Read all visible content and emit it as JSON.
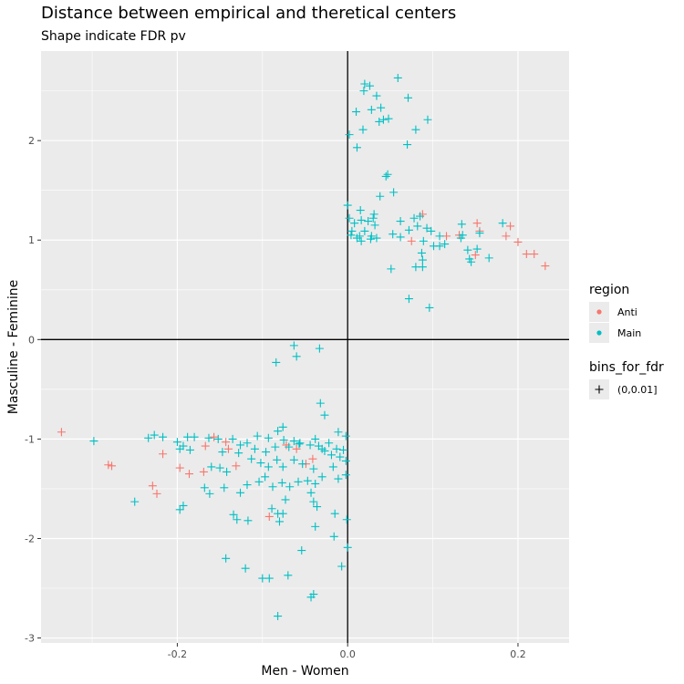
{
  "chart_data": {
    "type": "scatter",
    "title": "Distance between empirical and theretical centers",
    "subtitle": "Shape indicate FDR pv",
    "xlabel": "Men - Women",
    "ylabel": "Masculine - Feminine",
    "xlim": [
      -0.36,
      0.26
    ],
    "ylim": [
      -3.05,
      2.9
    ],
    "x_ticks": [
      -0.2,
      0.0,
      0.2
    ],
    "x_tick_labels": [
      "-0.2",
      "0.0",
      "0.2"
    ],
    "y_ticks": [
      2,
      1,
      0,
      -1,
      -2,
      -3
    ],
    "y_tick_labels": [
      "2",
      "1",
      "0",
      "-1",
      "-2",
      "-3"
    ],
    "grid": true,
    "reference_lines": {
      "x": 0,
      "y": 0
    },
    "legend_position": "right",
    "colors": {
      "Anti": "#F8766D",
      "Main": "#00BFC4",
      "panel": "#EBEBEB",
      "grid": "#FFFFFF"
    },
    "legends": [
      {
        "title": "region",
        "entries": [
          {
            "label": "Anti",
            "color": "#F8766D"
          },
          {
            "label": "Main",
            "color": "#00BFC4"
          }
        ]
      },
      {
        "title": "bins_for_fdr",
        "entries": [
          {
            "label": "(0,0.01]",
            "shape": "plus"
          }
        ]
      }
    ],
    "series": [
      {
        "name": "Anti",
        "color": "#F8766D",
        "points": [
          [
            -0.336,
            -0.93
          ],
          [
            -0.281,
            -1.26
          ],
          [
            -0.277,
            -1.27
          ],
          [
            -0.229,
            -1.47
          ],
          [
            -0.224,
            -1.55
          ],
          [
            -0.217,
            -1.15
          ],
          [
            -0.197,
            -1.29
          ],
          [
            -0.186,
            -1.35
          ],
          [
            -0.169,
            -1.33
          ],
          [
            -0.167,
            -1.07
          ],
          [
            -0.157,
            -0.98
          ],
          [
            -0.143,
            -1.03
          ],
          [
            -0.14,
            -1.1
          ],
          [
            -0.131,
            -1.27
          ],
          [
            -0.092,
            -1.78
          ],
          [
            -0.072,
            -1.06
          ],
          [
            -0.06,
            -1.1
          ],
          [
            -0.049,
            -1.25
          ],
          [
            -0.041,
            -1.2
          ],
          [
            0.075,
            0.99
          ],
          [
            0.088,
            1.26
          ],
          [
            0.116,
            1.04
          ],
          [
            0.131,
            1.05
          ],
          [
            0.15,
            0.85
          ],
          [
            0.152,
            1.17
          ],
          [
            0.155,
            1.09
          ],
          [
            0.186,
            1.04
          ],
          [
            0.191,
            1.14
          ],
          [
            0.2,
            0.98
          ],
          [
            0.21,
            0.86
          ],
          [
            0.219,
            0.86
          ],
          [
            0.232,
            0.74
          ]
        ]
      },
      {
        "name": "Main",
        "color": "#00BFC4",
        "points": [
          [
            0.02,
            2.57
          ],
          [
            0.026,
            2.55
          ],
          [
            0.019,
            2.5
          ],
          [
            0.059,
            2.63
          ],
          [
            0.034,
            2.45
          ],
          [
            0.071,
            2.43
          ],
          [
            0.01,
            2.29
          ],
          [
            0.028,
            2.31
          ],
          [
            0.039,
            2.33
          ],
          [
            0.042,
            2.21
          ],
          [
            0.048,
            2.22
          ],
          [
            0.037,
            2.19
          ],
          [
            0.094,
            2.21
          ],
          [
            0.08,
            2.11
          ],
          [
            0.018,
            2.11
          ],
          [
            0.002,
            2.06
          ],
          [
            0.07,
            1.96
          ],
          [
            0.011,
            1.93
          ],
          [
            0.045,
            1.64
          ],
          [
            0.047,
            1.66
          ],
          [
            0.054,
            1.48
          ],
          [
            0.038,
            1.44
          ],
          [
            0.0,
            1.35
          ],
          [
            0.015,
            1.3
          ],
          [
            0.031,
            1.26
          ],
          [
            0.03,
            1.22
          ],
          [
            0.002,
            1.22
          ],
          [
            0.016,
            1.2
          ],
          [
            0.008,
            1.17
          ],
          [
            0.024,
            1.19
          ],
          [
            0.032,
            1.15
          ],
          [
            0.062,
            1.19
          ],
          [
            0.078,
            1.22
          ],
          [
            0.085,
            1.24
          ],
          [
            0.072,
            1.1
          ],
          [
            0.082,
            1.14
          ],
          [
            0.093,
            1.12
          ],
          [
            0.098,
            1.09
          ],
          [
            0.134,
            1.16
          ],
          [
            0.005,
            1.09
          ],
          [
            0.02,
            1.09
          ],
          [
            0.004,
            1.05
          ],
          [
            0.014,
            1.04
          ],
          [
            0.028,
            1.04
          ],
          [
            0.034,
            1.02
          ],
          [
            0.053,
            1.06
          ],
          [
            0.062,
            1.03
          ],
          [
            0.108,
            1.04
          ],
          [
            0.135,
            1.05
          ],
          [
            0.155,
            1.07
          ],
          [
            0.182,
            1.17
          ],
          [
            0.011,
            1.02
          ],
          [
            0.016,
            0.99
          ],
          [
            0.027,
            1.01
          ],
          [
            0.089,
            0.99
          ],
          [
            0.101,
            0.94
          ],
          [
            0.108,
            0.94
          ],
          [
            0.114,
            0.96
          ],
          [
            0.133,
            1.02
          ],
          [
            0.141,
            0.9
          ],
          [
            0.152,
            0.91
          ],
          [
            0.143,
            0.81
          ],
          [
            0.166,
            0.82
          ],
          [
            0.087,
            0.87
          ],
          [
            0.088,
            0.8
          ],
          [
            0.08,
            0.73
          ],
          [
            0.088,
            0.73
          ],
          [
            0.051,
            0.71
          ],
          [
            0.072,
            0.41
          ],
          [
            0.096,
            0.32
          ],
          [
            0.145,
            0.78
          ],
          [
            -0.063,
            -0.06
          ],
          [
            -0.033,
            -0.09
          ],
          [
            -0.06,
            -0.17
          ],
          [
            -0.084,
            -0.23
          ],
          [
            -0.032,
            -0.64
          ],
          [
            -0.027,
            -0.76
          ],
          [
            -0.076,
            -0.88
          ],
          [
            -0.082,
            -0.92
          ],
          [
            -0.011,
            -0.93
          ],
          [
            -0.002,
            -0.97
          ],
          [
            -0.298,
            -1.02
          ],
          [
            -0.234,
            -0.99
          ],
          [
            -0.227,
            -0.96
          ],
          [
            -0.217,
            -0.98
          ],
          [
            -0.2,
            -1.03
          ],
          [
            -0.193,
            -1.07
          ],
          [
            -0.197,
            -1.1
          ],
          [
            -0.185,
            -1.11
          ],
          [
            -0.188,
            -0.98
          ],
          [
            -0.18,
            -0.98
          ],
          [
            -0.163,
            -0.99
          ],
          [
            -0.152,
            -1.0
          ],
          [
            -0.135,
            -1.0
          ],
          [
            -0.118,
            -1.04
          ],
          [
            -0.106,
            -0.97
          ],
          [
            -0.093,
            -0.99
          ],
          [
            -0.075,
            -1.01
          ],
          [
            -0.063,
            -1.02
          ],
          [
            -0.056,
            -1.04
          ],
          [
            -0.038,
            -1.0
          ],
          [
            -0.022,
            -1.04
          ],
          [
            -0.013,
            -1.1
          ],
          [
            -0.019,
            -1.16
          ],
          [
            -0.009,
            -1.18
          ],
          [
            -0.002,
            -1.22
          ],
          [
            -0.005,
            -1.11
          ],
          [
            -0.126,
            -1.06
          ],
          [
            -0.109,
            -1.1
          ],
          [
            -0.096,
            -1.13
          ],
          [
            -0.085,
            -1.08
          ],
          [
            -0.069,
            -1.08
          ],
          [
            -0.057,
            -1.05
          ],
          [
            -0.044,
            -1.06
          ],
          [
            -0.034,
            -1.07
          ],
          [
            -0.03,
            -1.1
          ],
          [
            -0.027,
            -1.12
          ],
          [
            -0.147,
            -1.13
          ],
          [
            -0.16,
            -1.28
          ],
          [
            -0.15,
            -1.29
          ],
          [
            -0.142,
            -1.33
          ],
          [
            -0.128,
            -1.14
          ],
          [
            -0.113,
            -1.2
          ],
          [
            -0.102,
            -1.24
          ],
          [
            -0.093,
            -1.28
          ],
          [
            -0.083,
            -1.21
          ],
          [
            -0.076,
            -1.28
          ],
          [
            -0.063,
            -1.21
          ],
          [
            -0.053,
            -1.25
          ],
          [
            -0.04,
            -1.3
          ],
          [
            -0.03,
            -1.38
          ],
          [
            -0.017,
            -1.28
          ],
          [
            -0.011,
            -1.4
          ],
          [
            -0.002,
            -1.36
          ],
          [
            -0.047,
            -1.42
          ],
          [
            -0.038,
            -1.45
          ],
          [
            -0.168,
            -1.49
          ],
          [
            -0.162,
            -1.55
          ],
          [
            -0.145,
            -1.49
          ],
          [
            -0.126,
            -1.54
          ],
          [
            -0.118,
            -1.46
          ],
          [
            -0.104,
            -1.43
          ],
          [
            -0.097,
            -1.38
          ],
          [
            -0.088,
            -1.48
          ],
          [
            -0.077,
            -1.44
          ],
          [
            -0.068,
            -1.48
          ],
          [
            -0.058,
            -1.43
          ],
          [
            -0.043,
            -1.54
          ],
          [
            -0.04,
            -1.63
          ],
          [
            -0.073,
            -1.61
          ],
          [
            -0.089,
            -1.7
          ],
          [
            -0.082,
            -1.75
          ],
          [
            -0.08,
            -1.83
          ],
          [
            -0.076,
            -1.75
          ],
          [
            -0.036,
            -1.68
          ],
          [
            -0.038,
            -1.88
          ],
          [
            -0.015,
            -1.75
          ],
          [
            -0.001,
            -1.81
          ],
          [
            -0.134,
            -1.76
          ],
          [
            -0.13,
            -1.81
          ],
          [
            -0.117,
            -1.82
          ],
          [
            -0.197,
            -1.71
          ],
          [
            -0.193,
            -1.67
          ],
          [
            -0.25,
            -1.63
          ],
          [
            -0.016,
            -1.98
          ],
          [
            -0.054,
            -2.12
          ],
          [
            -0.143,
            -2.2
          ],
          [
            -0.12,
            -2.3
          ],
          [
            -0.1,
            -2.4
          ],
          [
            -0.092,
            -2.4
          ],
          [
            -0.07,
            -2.37
          ],
          [
            -0.007,
            -2.28
          ],
          [
            0.0,
            -2.09
          ],
          [
            -0.04,
            -2.56
          ],
          [
            -0.043,
            -2.59
          ],
          [
            -0.082,
            -2.78
          ]
        ]
      }
    ]
  }
}
